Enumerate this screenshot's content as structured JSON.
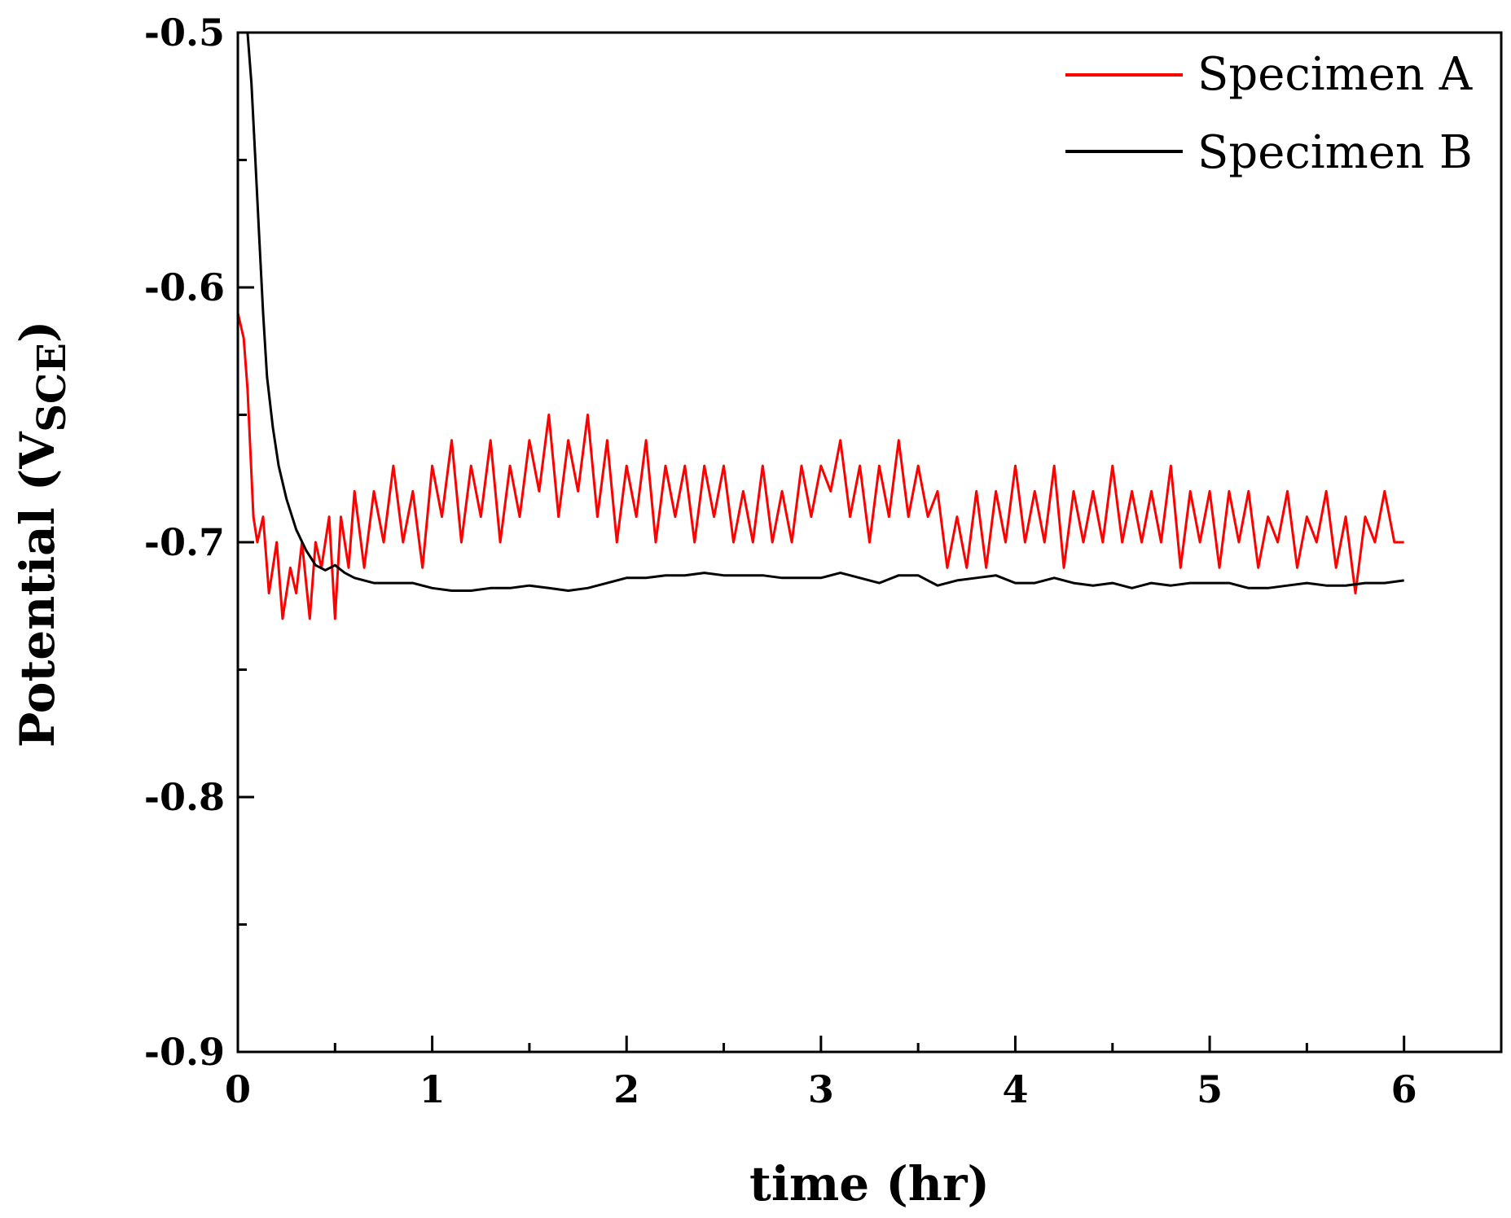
{
  "chart_data": {
    "type": "line",
    "title": "",
    "xlabel": "time (hr)",
    "ylabel": {
      "main": "Potential (V",
      "subscript": "SCE",
      "close": ")"
    },
    "xlim": [
      0,
      6.5
    ],
    "ylim": [
      -0.9,
      -0.5
    ],
    "x_major_ticks": [
      0,
      1,
      2,
      3,
      4,
      5,
      6
    ],
    "x_tick_labels": [
      "0",
      "1",
      "2",
      "3",
      "4",
      "5",
      "6"
    ],
    "x_minor_ticks": [
      0.5,
      1.5,
      2.5,
      3.5,
      4.5,
      5.5
    ],
    "y_major_ticks": [
      -0.9,
      -0.8,
      -0.7,
      -0.6,
      -0.5
    ],
    "y_tick_labels": [
      "-0.9",
      "-0.8",
      "-0.7",
      "-0.6",
      "-0.5"
    ],
    "y_minor_ticks": [
      -0.85,
      -0.75,
      -0.65,
      -0.55
    ],
    "grid": false,
    "legend_position": "top-right",
    "series": [
      {
        "name": "Specimen A",
        "color": "#ff0000",
        "points": [
          [
            0.0,
            -0.61
          ],
          [
            0.03,
            -0.62
          ],
          [
            0.05,
            -0.64
          ],
          [
            0.08,
            -0.69
          ],
          [
            0.1,
            -0.7
          ],
          [
            0.13,
            -0.69
          ],
          [
            0.16,
            -0.72
          ],
          [
            0.2,
            -0.7
          ],
          [
            0.23,
            -0.73
          ],
          [
            0.27,
            -0.71
          ],
          [
            0.3,
            -0.72
          ],
          [
            0.33,
            -0.7
          ],
          [
            0.37,
            -0.73
          ],
          [
            0.4,
            -0.7
          ],
          [
            0.43,
            -0.71
          ],
          [
            0.47,
            -0.69
          ],
          [
            0.5,
            -0.73
          ],
          [
            0.53,
            -0.69
          ],
          [
            0.57,
            -0.71
          ],
          [
            0.6,
            -0.68
          ],
          [
            0.65,
            -0.71
          ],
          [
            0.7,
            -0.68
          ],
          [
            0.75,
            -0.7
          ],
          [
            0.8,
            -0.67
          ],
          [
            0.85,
            -0.7
          ],
          [
            0.9,
            -0.68
          ],
          [
            0.95,
            -0.71
          ],
          [
            1.0,
            -0.67
          ],
          [
            1.05,
            -0.69
          ],
          [
            1.1,
            -0.66
          ],
          [
            1.15,
            -0.7
          ],
          [
            1.2,
            -0.67
          ],
          [
            1.25,
            -0.69
          ],
          [
            1.3,
            -0.66
          ],
          [
            1.35,
            -0.7
          ],
          [
            1.4,
            -0.67
          ],
          [
            1.45,
            -0.69
          ],
          [
            1.5,
            -0.66
          ],
          [
            1.55,
            -0.68
          ],
          [
            1.6,
            -0.65
          ],
          [
            1.65,
            -0.69
          ],
          [
            1.7,
            -0.66
          ],
          [
            1.75,
            -0.68
          ],
          [
            1.8,
            -0.65
          ],
          [
            1.85,
            -0.69
          ],
          [
            1.9,
            -0.66
          ],
          [
            1.95,
            -0.7
          ],
          [
            2.0,
            -0.67
          ],
          [
            2.05,
            -0.69
          ],
          [
            2.1,
            -0.66
          ],
          [
            2.15,
            -0.7
          ],
          [
            2.2,
            -0.67
          ],
          [
            2.25,
            -0.69
          ],
          [
            2.3,
            -0.67
          ],
          [
            2.35,
            -0.7
          ],
          [
            2.4,
            -0.67
          ],
          [
            2.45,
            -0.69
          ],
          [
            2.5,
            -0.67
          ],
          [
            2.55,
            -0.7
          ],
          [
            2.6,
            -0.68
          ],
          [
            2.65,
            -0.7
          ],
          [
            2.7,
            -0.67
          ],
          [
            2.75,
            -0.7
          ],
          [
            2.8,
            -0.68
          ],
          [
            2.85,
            -0.7
          ],
          [
            2.9,
            -0.67
          ],
          [
            2.95,
            -0.69
          ],
          [
            3.0,
            -0.67
          ],
          [
            3.05,
            -0.68
          ],
          [
            3.1,
            -0.66
          ],
          [
            3.15,
            -0.69
          ],
          [
            3.2,
            -0.67
          ],
          [
            3.25,
            -0.7
          ],
          [
            3.3,
            -0.67
          ],
          [
            3.35,
            -0.69
          ],
          [
            3.4,
            -0.66
          ],
          [
            3.45,
            -0.69
          ],
          [
            3.5,
            -0.67
          ],
          [
            3.55,
            -0.69
          ],
          [
            3.6,
            -0.68
          ],
          [
            3.65,
            -0.71
          ],
          [
            3.7,
            -0.69
          ],
          [
            3.75,
            -0.71
          ],
          [
            3.8,
            -0.68
          ],
          [
            3.85,
            -0.71
          ],
          [
            3.9,
            -0.68
          ],
          [
            3.95,
            -0.7
          ],
          [
            4.0,
            -0.67
          ],
          [
            4.05,
            -0.7
          ],
          [
            4.1,
            -0.68
          ],
          [
            4.15,
            -0.7
          ],
          [
            4.2,
            -0.67
          ],
          [
            4.25,
            -0.71
          ],
          [
            4.3,
            -0.68
          ],
          [
            4.35,
            -0.7
          ],
          [
            4.4,
            -0.68
          ],
          [
            4.45,
            -0.7
          ],
          [
            4.5,
            -0.67
          ],
          [
            4.55,
            -0.7
          ],
          [
            4.6,
            -0.68
          ],
          [
            4.65,
            -0.7
          ],
          [
            4.7,
            -0.68
          ],
          [
            4.75,
            -0.7
          ],
          [
            4.8,
            -0.67
          ],
          [
            4.85,
            -0.71
          ],
          [
            4.9,
            -0.68
          ],
          [
            4.95,
            -0.7
          ],
          [
            5.0,
            -0.68
          ],
          [
            5.05,
            -0.71
          ],
          [
            5.1,
            -0.68
          ],
          [
            5.15,
            -0.7
          ],
          [
            5.2,
            -0.68
          ],
          [
            5.25,
            -0.71
          ],
          [
            5.3,
            -0.69
          ],
          [
            5.35,
            -0.7
          ],
          [
            5.4,
            -0.68
          ],
          [
            5.45,
            -0.71
          ],
          [
            5.5,
            -0.69
          ],
          [
            5.55,
            -0.7
          ],
          [
            5.6,
            -0.68
          ],
          [
            5.65,
            -0.71
          ],
          [
            5.7,
            -0.69
          ],
          [
            5.75,
            -0.72
          ],
          [
            5.8,
            -0.69
          ],
          [
            5.85,
            -0.7
          ],
          [
            5.9,
            -0.68
          ],
          [
            5.95,
            -0.7
          ],
          [
            6.0,
            -0.7
          ]
        ]
      },
      {
        "name": "Specimen B",
        "color": "#000000",
        "points": [
          [
            0.05,
            -0.5
          ],
          [
            0.07,
            -0.52
          ],
          [
            0.09,
            -0.55
          ],
          [
            0.11,
            -0.58
          ],
          [
            0.13,
            -0.61
          ],
          [
            0.15,
            -0.635
          ],
          [
            0.18,
            -0.655
          ],
          [
            0.21,
            -0.67
          ],
          [
            0.25,
            -0.683
          ],
          [
            0.3,
            -0.695
          ],
          [
            0.35,
            -0.703
          ],
          [
            0.4,
            -0.709
          ],
          [
            0.45,
            -0.711
          ],
          [
            0.5,
            -0.709
          ],
          [
            0.55,
            -0.712
          ],
          [
            0.6,
            -0.714
          ],
          [
            0.7,
            -0.716
          ],
          [
            0.8,
            -0.716
          ],
          [
            0.9,
            -0.716
          ],
          [
            1.0,
            -0.718
          ],
          [
            1.1,
            -0.719
          ],
          [
            1.2,
            -0.719
          ],
          [
            1.3,
            -0.718
          ],
          [
            1.4,
            -0.718
          ],
          [
            1.5,
            -0.717
          ],
          [
            1.6,
            -0.718
          ],
          [
            1.7,
            -0.719
          ],
          [
            1.8,
            -0.718
          ],
          [
            1.9,
            -0.716
          ],
          [
            2.0,
            -0.714
          ],
          [
            2.1,
            -0.714
          ],
          [
            2.2,
            -0.713
          ],
          [
            2.3,
            -0.713
          ],
          [
            2.4,
            -0.712
          ],
          [
            2.5,
            -0.713
          ],
          [
            2.6,
            -0.713
          ],
          [
            2.7,
            -0.713
          ],
          [
            2.8,
            -0.714
          ],
          [
            2.9,
            -0.714
          ],
          [
            3.0,
            -0.714
          ],
          [
            3.1,
            -0.712
          ],
          [
            3.2,
            -0.714
          ],
          [
            3.3,
            -0.716
          ],
          [
            3.4,
            -0.713
          ],
          [
            3.5,
            -0.713
          ],
          [
            3.6,
            -0.717
          ],
          [
            3.7,
            -0.715
          ],
          [
            3.8,
            -0.714
          ],
          [
            3.9,
            -0.713
          ],
          [
            4.0,
            -0.716
          ],
          [
            4.1,
            -0.716
          ],
          [
            4.2,
            -0.714
          ],
          [
            4.3,
            -0.716
          ],
          [
            4.4,
            -0.717
          ],
          [
            4.5,
            -0.716
          ],
          [
            4.6,
            -0.718
          ],
          [
            4.7,
            -0.716
          ],
          [
            4.8,
            -0.717
          ],
          [
            4.9,
            -0.716
          ],
          [
            5.0,
            -0.716
          ],
          [
            5.1,
            -0.716
          ],
          [
            5.2,
            -0.718
          ],
          [
            5.3,
            -0.718
          ],
          [
            5.4,
            -0.717
          ],
          [
            5.5,
            -0.716
          ],
          [
            5.6,
            -0.717
          ],
          [
            5.7,
            -0.717
          ],
          [
            5.8,
            -0.716
          ],
          [
            5.9,
            -0.716
          ],
          [
            6.0,
            -0.715
          ]
        ]
      }
    ]
  }
}
